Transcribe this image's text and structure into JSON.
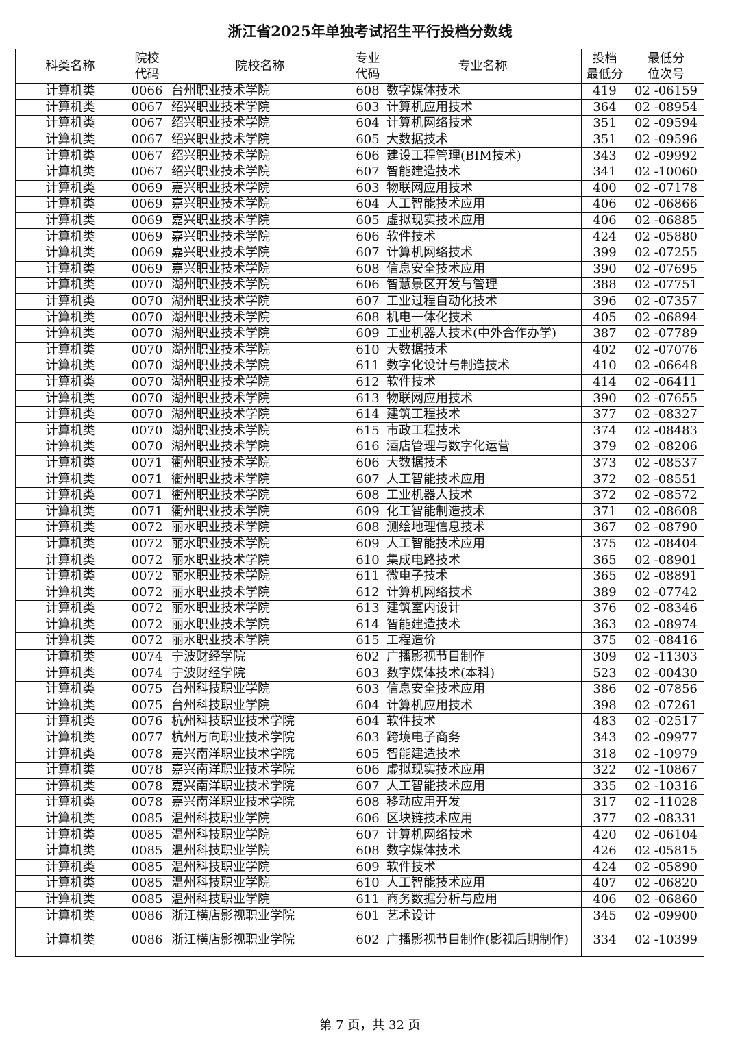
{
  "title": "浙江省2025年单独考试招生平行投档分数线",
  "headers": [
    "科类名称",
    "院校\n代码",
    "院校名称",
    "专业\n代码",
    "专业名称",
    "投档\n最低分",
    "最低分\n位次号"
  ],
  "rows": [
    [
      "计算机类",
      "0066",
      "台州职业技术学院",
      "608",
      "数字媒体技术",
      "419",
      "02 -06159"
    ],
    [
      "计算机类",
      "0067",
      "绍兴职业技术学院",
      "603",
      "计算机应用技术",
      "364",
      "02 -08954"
    ],
    [
      "计算机类",
      "0067",
      "绍兴职业技术学院",
      "604",
      "计算机网络技术",
      "351",
      "02 -09594"
    ],
    [
      "计算机类",
      "0067",
      "绍兴职业技术学院",
      "605",
      "大数据技术",
      "351",
      "02 -09596"
    ],
    [
      "计算机类",
      "0067",
      "绍兴职业技术学院",
      "606",
      "建设工程管理(BIM技术)",
      "343",
      "02 -09992"
    ],
    [
      "计算机类",
      "0067",
      "绍兴职业技术学院",
      "607",
      "智能建造技术",
      "341",
      "02 -10060"
    ],
    [
      "计算机类",
      "0069",
      "嘉兴职业技术学院",
      "603",
      "物联网应用技术",
      "400",
      "02 -07178"
    ],
    [
      "计算机类",
      "0069",
      "嘉兴职业技术学院",
      "604",
      "人工智能技术应用",
      "406",
      "02 -06866"
    ],
    [
      "计算机类",
      "0069",
      "嘉兴职业技术学院",
      "605",
      "虚拟现实技术应用",
      "406",
      "02 -06885"
    ],
    [
      "计算机类",
      "0069",
      "嘉兴职业技术学院",
      "606",
      "软件技术",
      "424",
      "02 -05880"
    ],
    [
      "计算机类",
      "0069",
      "嘉兴职业技术学院",
      "607",
      "计算机网络技术",
      "399",
      "02 -07255"
    ],
    [
      "计算机类",
      "0069",
      "嘉兴职业技术学院",
      "608",
      "信息安全技术应用",
      "390",
      "02 -07695"
    ],
    [
      "计算机类",
      "0070",
      "湖州职业技术学院",
      "606",
      "智慧景区开发与管理",
      "388",
      "02 -07751"
    ],
    [
      "计算机类",
      "0070",
      "湖州职业技术学院",
      "607",
      "工业过程自动化技术",
      "396",
      "02 -07357"
    ],
    [
      "计算机类",
      "0070",
      "湖州职业技术学院",
      "608",
      "机电一体化技术",
      "405",
      "02 -06894"
    ],
    [
      "计算机类",
      "0070",
      "湖州职业技术学院",
      "609",
      "工业机器人技术(中外合作办学)",
      "387",
      "02 -07789"
    ],
    [
      "计算机类",
      "0070",
      "湖州职业技术学院",
      "610",
      "大数据技术",
      "402",
      "02 -07076"
    ],
    [
      "计算机类",
      "0070",
      "湖州职业技术学院",
      "611",
      "数字化设计与制造技术",
      "410",
      "02 -06648"
    ],
    [
      "计算机类",
      "0070",
      "湖州职业技术学院",
      "612",
      "软件技术",
      "414",
      "02 -06411"
    ],
    [
      "计算机类",
      "0070",
      "湖州职业技术学院",
      "613",
      "物联网应用技术",
      "390",
      "02 -07655"
    ],
    [
      "计算机类",
      "0070",
      "湖州职业技术学院",
      "614",
      "建筑工程技术",
      "377",
      "02 -08327"
    ],
    [
      "计算机类",
      "0070",
      "湖州职业技术学院",
      "615",
      "市政工程技术",
      "374",
      "02 -08483"
    ],
    [
      "计算机类",
      "0070",
      "湖州职业技术学院",
      "616",
      "酒店管理与数字化运营",
      "379",
      "02 -08206"
    ],
    [
      "计算机类",
      "0071",
      "衢州职业技术学院",
      "606",
      "大数据技术",
      "373",
      "02 -08537"
    ],
    [
      "计算机类",
      "0071",
      "衢州职业技术学院",
      "607",
      "人工智能技术应用",
      "372",
      "02 -08551"
    ],
    [
      "计算机类",
      "0071",
      "衢州职业技术学院",
      "608",
      "工业机器人技术",
      "372",
      "02 -08572"
    ],
    [
      "计算机类",
      "0071",
      "衢州职业技术学院",
      "609",
      "化工智能制造技术",
      "371",
      "02 -08608"
    ],
    [
      "计算机类",
      "0072",
      "丽水职业技术学院",
      "608",
      "测绘地理信息技术",
      "367",
      "02 -08790"
    ],
    [
      "计算机类",
      "0072",
      "丽水职业技术学院",
      "609",
      "人工智能技术应用",
      "375",
      "02 -08404"
    ],
    [
      "计算机类",
      "0072",
      "丽水职业技术学院",
      "610",
      "集成电路技术",
      "365",
      "02 -08901"
    ],
    [
      "计算机类",
      "0072",
      "丽水职业技术学院",
      "611",
      "微电子技术",
      "365",
      "02 -08891"
    ],
    [
      "计算机类",
      "0072",
      "丽水职业技术学院",
      "612",
      "计算机网络技术",
      "389",
      "02 -07742"
    ],
    [
      "计算机类",
      "0072",
      "丽水职业技术学院",
      "613",
      "建筑室内设计",
      "376",
      "02 -08346"
    ],
    [
      "计算机类",
      "0072",
      "丽水职业技术学院",
      "614",
      "智能建造技术",
      "363",
      "02 -08974"
    ],
    [
      "计算机类",
      "0072",
      "丽水职业技术学院",
      "615",
      "工程造价",
      "375",
      "02 -08416"
    ],
    [
      "计算机类",
      "0074",
      "宁波财经学院",
      "602",
      "广播影视节目制作",
      "309",
      "02 -11303"
    ],
    [
      "计算机类",
      "0074",
      "宁波财经学院",
      "603",
      "数字媒体技术(本科)",
      "523",
      "02 -00430"
    ],
    [
      "计算机类",
      "0075",
      "台州科技职业学院",
      "603",
      "信息安全技术应用",
      "386",
      "02 -07856"
    ],
    [
      "计算机类",
      "0075",
      "台州科技职业学院",
      "604",
      "计算机应用技术",
      "398",
      "02 -07261"
    ],
    [
      "计算机类",
      "0076",
      "杭州科技职业技术学院",
      "604",
      "软件技术",
      "483",
      "02 -02517"
    ],
    [
      "计算机类",
      "0077",
      "杭州万向职业技术学院",
      "603",
      "跨境电子商务",
      "343",
      "02 -09977"
    ],
    [
      "计算机类",
      "0078",
      "嘉兴南洋职业技术学院",
      "605",
      "智能建造技术",
      "318",
      "02 -10979"
    ],
    [
      "计算机类",
      "0078",
      "嘉兴南洋职业技术学院",
      "606",
      "虚拟现实技术应用",
      "322",
      "02 -10867"
    ],
    [
      "计算机类",
      "0078",
      "嘉兴南洋职业技术学院",
      "607",
      "人工智能技术应用",
      "335",
      "02 -10316"
    ],
    [
      "计算机类",
      "0078",
      "嘉兴南洋职业技术学院",
      "608",
      "移动应用开发",
      "317",
      "02 -11028"
    ],
    [
      "计算机类",
      "0085",
      "温州科技职业学院",
      "606",
      "区块链技术应用",
      "377",
      "02 -08331"
    ],
    [
      "计算机类",
      "0085",
      "温州科技职业学院",
      "607",
      "计算机网络技术",
      "420",
      "02 -06104"
    ],
    [
      "计算机类",
      "0085",
      "温州科技职业学院",
      "608",
      "数字媒体技术",
      "426",
      "02 -05815"
    ],
    [
      "计算机类",
      "0085",
      "温州科技职业学院",
      "609",
      "软件技术",
      "424",
      "02 -05890"
    ],
    [
      "计算机类",
      "0085",
      "温州科技职业学院",
      "610",
      "人工智能技术应用",
      "407",
      "02 -06820"
    ],
    [
      "计算机类",
      "0085",
      "温州科技职业学院",
      "611",
      "商务数据分析与应用",
      "406",
      "02 -06860"
    ],
    [
      "计算机类",
      "0086",
      "浙江横店影视职业学院",
      "601",
      "艺术设计",
      "345",
      "02 -09900"
    ],
    [
      "计算机类",
      "0086",
      "浙江横店影视职业学院",
      "602",
      "广播影视节目制作(影视后期制作)",
      "334",
      "02 -10399"
    ]
  ],
  "footer": "第 7 页，共 32 页"
}
